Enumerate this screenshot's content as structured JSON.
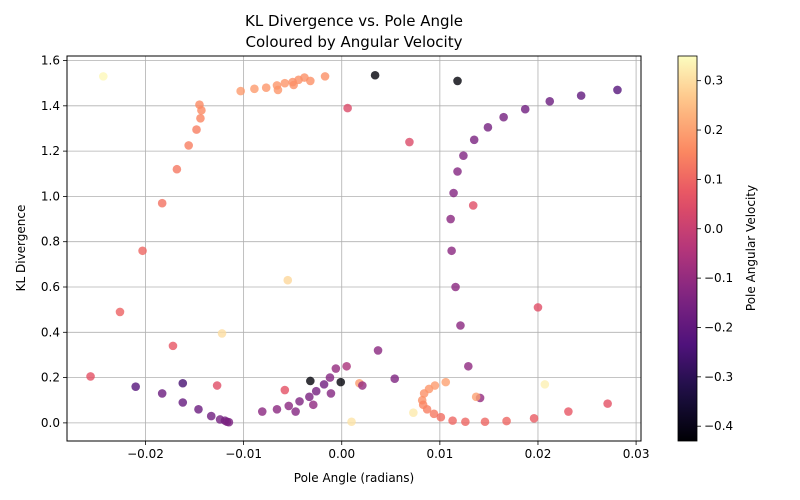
{
  "chart_data": {
    "type": "scatter",
    "title": [
      "KL Divergence vs. Pole Angle",
      "Coloured by Angular Velocity"
    ],
    "xlabel": "Pole Angle (radians)",
    "ylabel": "KL Divergence",
    "colorbar_label": "Pole Angular Velocity",
    "xlim": [
      -0.028,
      0.0305
    ],
    "ylim": [
      -0.08,
      1.62
    ],
    "xticks": [
      -0.02,
      -0.01,
      0.0,
      0.01,
      0.02,
      0.03
    ],
    "xtick_labels": [
      "−0.02",
      "−0.01",
      "0.00",
      "0.01",
      "0.02",
      "0.03"
    ],
    "yticks": [
      0.0,
      0.2,
      0.4,
      0.6,
      0.8,
      1.0,
      1.2,
      1.4,
      1.6
    ],
    "ytick_labels": [
      "0.0",
      "0.2",
      "0.4",
      "0.6",
      "0.8",
      "1.0",
      "1.2",
      "1.4",
      "1.6"
    ],
    "clim": [
      -0.43,
      0.35
    ],
    "cticks": [
      -0.4,
      -0.3,
      -0.2,
      -0.1,
      0.0,
      0.1,
      0.2,
      0.3
    ],
    "ctick_labels": [
      "−0.4",
      "−0.3",
      "−0.2",
      "−0.1",
      "0.0",
      "0.1",
      "0.2",
      "0.3"
    ],
    "colormap": "magma",
    "grid": true,
    "marker_alpha": 0.8,
    "points": [
      {
        "x": -0.0243,
        "y": 1.53,
        "c": 0.34
      },
      {
        "x": -0.0145,
        "y": 1.405,
        "c": 0.16
      },
      {
        "x": -0.0143,
        "y": 1.38,
        "c": 0.16
      },
      {
        "x": -0.0144,
        "y": 1.345,
        "c": 0.15
      },
      {
        "x": -0.0148,
        "y": 1.295,
        "c": 0.14
      },
      {
        "x": -0.0156,
        "y": 1.225,
        "c": 0.14
      },
      {
        "x": -0.0168,
        "y": 1.12,
        "c": 0.13
      },
      {
        "x": -0.0183,
        "y": 0.97,
        "c": 0.12
      },
      {
        "x": -0.0203,
        "y": 0.76,
        "c": 0.1
      },
      {
        "x": -0.0226,
        "y": 0.49,
        "c": 0.09
      },
      {
        "x": -0.0256,
        "y": 0.205,
        "c": 0.06
      },
      {
        "x": -0.0103,
        "y": 1.465,
        "c": 0.19
      },
      {
        "x": -0.0089,
        "y": 1.475,
        "c": 0.19
      },
      {
        "x": -0.0077,
        "y": 1.48,
        "c": 0.18
      },
      {
        "x": -0.0066,
        "y": 1.49,
        "c": 0.18
      },
      {
        "x": -0.0065,
        "y": 1.47,
        "c": 0.18
      },
      {
        "x": -0.0058,
        "y": 1.5,
        "c": 0.18
      },
      {
        "x": -0.005,
        "y": 1.505,
        "c": 0.17
      },
      {
        "x": -0.0049,
        "y": 1.492,
        "c": 0.17
      },
      {
        "x": -0.0044,
        "y": 1.515,
        "c": 0.17
      },
      {
        "x": -0.0038,
        "y": 1.525,
        "c": 0.17
      },
      {
        "x": -0.0032,
        "y": 1.51,
        "c": 0.17
      },
      {
        "x": -0.0017,
        "y": 1.53,
        "c": 0.17
      },
      {
        "x": 0.0034,
        "y": 1.535,
        "c": -0.42
      },
      {
        "x": 0.0118,
        "y": 1.51,
        "c": -0.42
      },
      {
        "x": 0.0006,
        "y": 1.39,
        "c": 0.04
      },
      {
        "x": 0.0069,
        "y": 1.24,
        "c": 0.04
      },
      {
        "x": 0.0134,
        "y": 0.96,
        "c": 0.05
      },
      {
        "x": 0.0281,
        "y": 1.47,
        "c": -0.22
      },
      {
        "x": 0.0244,
        "y": 1.445,
        "c": -0.2
      },
      {
        "x": 0.0212,
        "y": 1.42,
        "c": -0.18
      },
      {
        "x": 0.0187,
        "y": 1.385,
        "c": -0.17
      },
      {
        "x": 0.0165,
        "y": 1.35,
        "c": -0.16
      },
      {
        "x": 0.0149,
        "y": 1.305,
        "c": -0.16
      },
      {
        "x": 0.0135,
        "y": 1.25,
        "c": -0.15
      },
      {
        "x": 0.0124,
        "y": 1.18,
        "c": -0.14
      },
      {
        "x": 0.0118,
        "y": 1.11,
        "c": -0.13
      },
      {
        "x": 0.0114,
        "y": 1.015,
        "c": -0.13
      },
      {
        "x": 0.0111,
        "y": 0.9,
        "c": -0.12
      },
      {
        "x": 0.0112,
        "y": 0.76,
        "c": -0.12
      },
      {
        "x": 0.0116,
        "y": 0.6,
        "c": -0.12
      },
      {
        "x": 0.0121,
        "y": 0.43,
        "c": -0.12
      },
      {
        "x": 0.0129,
        "y": 0.25,
        "c": -0.11
      },
      {
        "x": 0.0141,
        "y": 0.11,
        "c": -0.1
      },
      {
        "x": -0.0055,
        "y": 0.63,
        "c": 0.29
      },
      {
        "x": -0.0122,
        "y": 0.395,
        "c": 0.3
      },
      {
        "x": -0.0172,
        "y": 0.34,
        "c": 0.07
      },
      {
        "x": 0.02,
        "y": 0.51,
        "c": 0.05
      },
      {
        "x": -0.021,
        "y": 0.16,
        "c": -0.22
      },
      {
        "x": -0.0183,
        "y": 0.13,
        "c": -0.18
      },
      {
        "x": -0.0162,
        "y": 0.175,
        "c": -0.25
      },
      {
        "x": -0.0162,
        "y": 0.09,
        "c": -0.19
      },
      {
        "x": -0.0146,
        "y": 0.06,
        "c": -0.18
      },
      {
        "x": -0.0133,
        "y": 0.03,
        "c": -0.17
      },
      {
        "x": -0.0124,
        "y": 0.015,
        "c": -0.16
      },
      {
        "x": -0.0119,
        "y": 0.01,
        "c": -0.16
      },
      {
        "x": -0.0117,
        "y": 0.005,
        "c": -0.15
      },
      {
        "x": -0.0115,
        "y": 0.003,
        "c": -0.15
      },
      {
        "x": -0.0127,
        "y": 0.165,
        "c": 0.05
      },
      {
        "x": -0.0081,
        "y": 0.05,
        "c": -0.12
      },
      {
        "x": -0.0066,
        "y": 0.06,
        "c": -0.12
      },
      {
        "x": -0.0058,
        "y": 0.145,
        "c": 0.06
      },
      {
        "x": -0.0054,
        "y": 0.075,
        "c": -0.12
      },
      {
        "x": -0.0047,
        "y": 0.05,
        "c": -0.13
      },
      {
        "x": -0.0043,
        "y": 0.095,
        "c": -0.14
      },
      {
        "x": -0.0033,
        "y": 0.115,
        "c": -0.15
      },
      {
        "x": -0.0029,
        "y": 0.08,
        "c": -0.11
      },
      {
        "x": -0.0026,
        "y": 0.14,
        "c": -0.16
      },
      {
        "x": -0.0018,
        "y": 0.17,
        "c": -0.17
      },
      {
        "x": -0.0012,
        "y": 0.2,
        "c": -0.13
      },
      {
        "x": -0.0011,
        "y": 0.13,
        "c": -0.13
      },
      {
        "x": -0.0006,
        "y": 0.24,
        "c": -0.1
      },
      {
        "x": -0.0032,
        "y": 0.185,
        "c": -0.42
      },
      {
        "x": -0.0001,
        "y": 0.18,
        "c": -0.42
      },
      {
        "x": 0.0005,
        "y": 0.25,
        "c": -0.06
      },
      {
        "x": 0.0018,
        "y": 0.175,
        "c": 0.19
      },
      {
        "x": 0.0021,
        "y": 0.165,
        "c": -0.1
      },
      {
        "x": 0.0037,
        "y": 0.32,
        "c": -0.12
      },
      {
        "x": 0.0054,
        "y": 0.195,
        "c": -0.14
      },
      {
        "x": 0.001,
        "y": 0.005,
        "c": 0.31
      },
      {
        "x": 0.0073,
        "y": 0.045,
        "c": 0.32
      },
      {
        "x": 0.0082,
        "y": 0.1,
        "c": 0.17
      },
      {
        "x": 0.0084,
        "y": 0.13,
        "c": 0.17
      },
      {
        "x": 0.0087,
        "y": 0.06,
        "c": 0.14
      },
      {
        "x": 0.0083,
        "y": 0.08,
        "c": 0.15
      },
      {
        "x": 0.0089,
        "y": 0.15,
        "c": 0.18
      },
      {
        "x": 0.0095,
        "y": 0.165,
        "c": 0.19
      },
      {
        "x": 0.0094,
        "y": 0.04,
        "c": 0.13
      },
      {
        "x": 0.0101,
        "y": 0.025,
        "c": 0.11
      },
      {
        "x": 0.0106,
        "y": 0.18,
        "c": 0.2
      },
      {
        "x": 0.0113,
        "y": 0.01,
        "c": 0.1
      },
      {
        "x": 0.0126,
        "y": 0.005,
        "c": 0.1
      },
      {
        "x": 0.0137,
        "y": 0.115,
        "c": 0.2
      },
      {
        "x": 0.0146,
        "y": 0.005,
        "c": 0.1
      },
      {
        "x": 0.0168,
        "y": 0.008,
        "c": 0.1
      },
      {
        "x": 0.0196,
        "y": 0.02,
        "c": 0.08
      },
      {
        "x": 0.0207,
        "y": 0.17,
        "c": 0.33
      },
      {
        "x": 0.0231,
        "y": 0.05,
        "c": 0.07
      },
      {
        "x": 0.0271,
        "y": 0.085,
        "c": 0.06
      }
    ]
  }
}
